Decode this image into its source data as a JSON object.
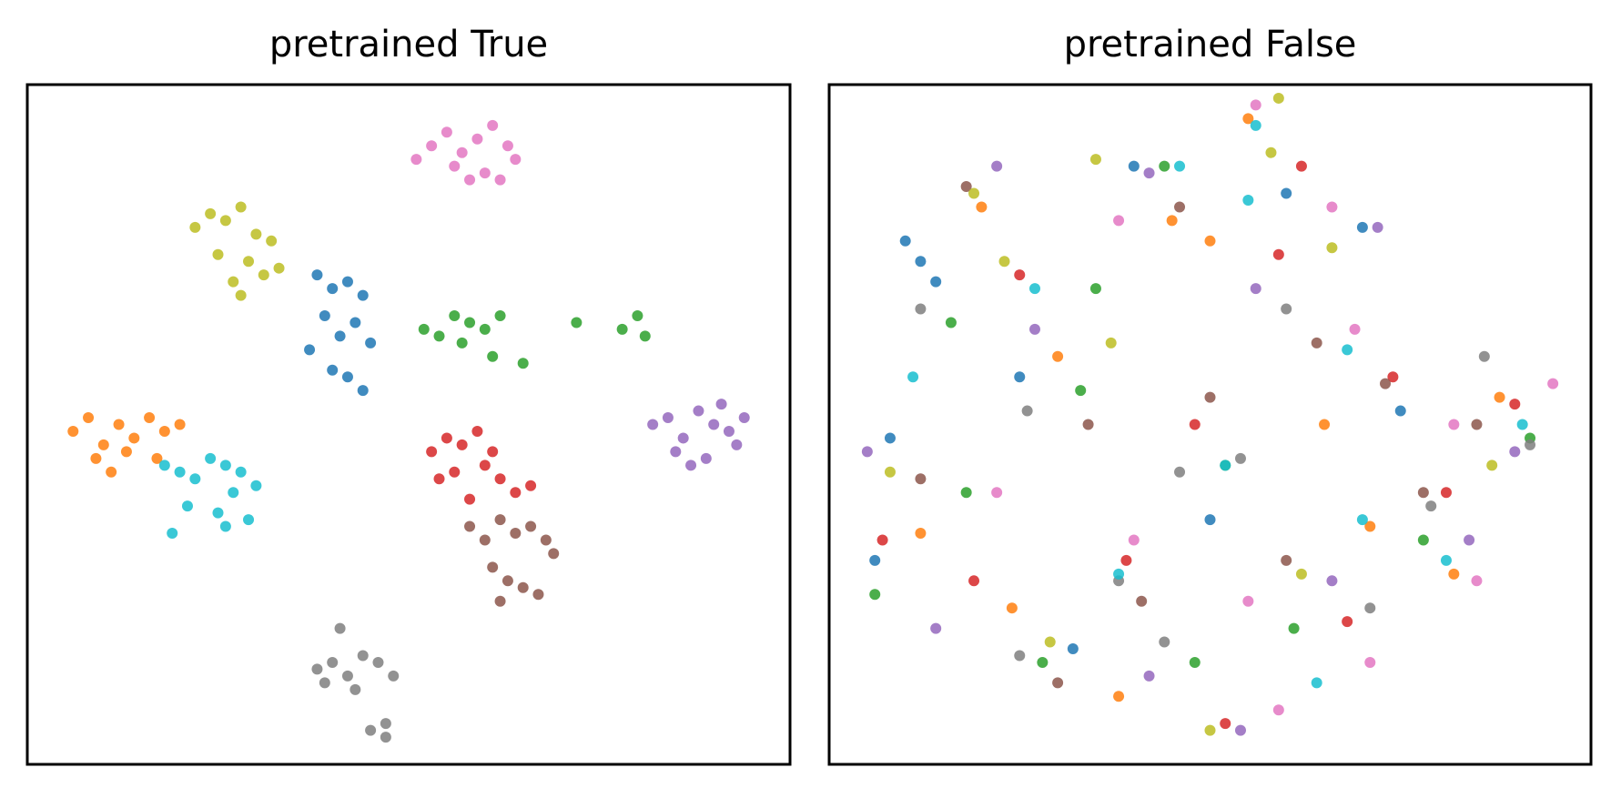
{
  "chart_data": [
    {
      "type": "scatter",
      "title": "pretrained True",
      "xlim": [
        0,
        100
      ],
      "ylim": [
        0,
        100
      ],
      "series": [
        {
          "color": "#1f77b4",
          "x": [
            38,
            40,
            42,
            44,
            39,
            43,
            41,
            37,
            45,
            40,
            42,
            44
          ],
          "values": [
            72,
            70,
            71,
            69,
            66,
            65,
            63,
            61,
            62,
            58,
            57,
            55
          ]
        },
        {
          "color": "#ff7f0e",
          "x": [
            6,
            8,
            10,
            12,
            14,
            16,
            18,
            20,
            9,
            13,
            17,
            11
          ],
          "values": [
            49,
            51,
            47,
            50,
            48,
            51,
            49,
            50,
            45,
            46,
            45,
            43
          ]
        },
        {
          "color": "#2ca02c",
          "x": [
            52,
            54,
            56,
            58,
            60,
            62,
            57,
            61,
            65,
            72,
            78,
            80,
            81
          ],
          "values": [
            64,
            63,
            66,
            65,
            64,
            66,
            62,
            60,
            59,
            65,
            64,
            66,
            63
          ]
        },
        {
          "color": "#d62728",
          "x": [
            53,
            55,
            57,
            59,
            61,
            56,
            60,
            62,
            64,
            54,
            58,
            66
          ],
          "values": [
            46,
            48,
            47,
            49,
            46,
            43,
            44,
            42,
            40,
            42,
            39,
            41
          ]
        },
        {
          "color": "#9467bd",
          "x": [
            82,
            84,
            86,
            88,
            90,
            92,
            94,
            85,
            89,
            93,
            87,
            91
          ],
          "values": [
            50,
            51,
            48,
            52,
            50,
            49,
            51,
            46,
            45,
            47,
            44,
            53
          ]
        },
        {
          "color": "#8c564b",
          "x": [
            58,
            60,
            62,
            64,
            66,
            68,
            61,
            63,
            65,
            67,
            62,
            69
          ],
          "values": [
            35,
            33,
            36,
            34,
            35,
            33,
            29,
            27,
            26,
            25,
            24,
            31
          ]
        },
        {
          "color": "#e377c2",
          "x": [
            53,
            55,
            57,
            59,
            61,
            63,
            56,
            60,
            64,
            58,
            62,
            51
          ],
          "values": [
            91,
            93,
            90,
            92,
            94,
            91,
            88,
            87,
            89,
            86,
            86,
            89
          ]
        },
        {
          "color": "#7f7f7f",
          "x": [
            38,
            40,
            42,
            44,
            46,
            48,
            39,
            43,
            47,
            45,
            47,
            41
          ],
          "values": [
            14,
            15,
            13,
            16,
            15,
            13,
            12,
            11,
            6,
            5,
            4,
            20
          ]
        },
        {
          "color": "#bcbd22",
          "x": [
            22,
            24,
            26,
            28,
            30,
            32,
            25,
            29,
            33,
            27,
            31,
            28
          ],
          "values": [
            79,
            81,
            80,
            82,
            78,
            77,
            75,
            74,
            73,
            71,
            72,
            69
          ]
        },
        {
          "color": "#17becf",
          "x": [
            18,
            20,
            22,
            24,
            26,
            28,
            30,
            21,
            25,
            29,
            27,
            19,
            26
          ],
          "values": [
            44,
            43,
            42,
            45,
            44,
            43,
            41,
            38,
            37,
            36,
            40,
            34,
            35
          ]
        }
      ]
    },
    {
      "type": "scatter",
      "title": "pretrained False",
      "xlim": [
        0,
        100
      ],
      "ylim": [
        0,
        100
      ],
      "series": [
        {
          "color": "#1f77b4",
          "x": [
            10,
            12,
            14,
            40,
            25,
            8,
            6,
            50,
            70,
            32,
            75,
            60
          ],
          "values": [
            77,
            74,
            71,
            88,
            57,
            48,
            30,
            36,
            79,
            17,
            52,
            84
          ]
        },
        {
          "color": "#ff7f0e",
          "x": [
            20,
            30,
            45,
            50,
            65,
            88,
            12,
            38,
            82,
            55,
            24,
            71
          ],
          "values": [
            82,
            60,
            80,
            77,
            50,
            54,
            34,
            10,
            28,
            95,
            23,
            35
          ]
        },
        {
          "color": "#2ca02c",
          "x": [
            16,
            33,
            18,
            52,
            78,
            92,
            6,
            28,
            48,
            44,
            61,
            35
          ],
          "values": [
            65,
            55,
            40,
            44,
            33,
            48,
            25,
            15,
            15,
            88,
            20,
            70
          ]
        },
        {
          "color": "#d62728",
          "x": [
            25,
            48,
            62,
            74,
            81,
            90,
            7,
            59,
            52,
            39,
            68,
            19
          ],
          "values": [
            72,
            50,
            88,
            57,
            40,
            53,
            33,
            75,
            6,
            30,
            21,
            27
          ]
        },
        {
          "color": "#9467bd",
          "x": [
            22,
            27,
            42,
            56,
            72,
            90,
            5,
            42,
            54,
            66,
            84,
            14
          ],
          "values": [
            88,
            64,
            87,
            70,
            79,
            46,
            46,
            13,
            5,
            27,
            33,
            20
          ]
        },
        {
          "color": "#8c564b",
          "x": [
            18,
            34,
            50,
            64,
            73,
            85,
            12,
            41,
            60,
            78,
            30,
            46
          ],
          "values": [
            85,
            50,
            54,
            62,
            56,
            50,
            42,
            24,
            30,
            40,
            12,
            82
          ]
        },
        {
          "color": "#e377c2",
          "x": [
            38,
            56,
            66,
            82,
            95,
            69,
            22,
            55,
            71,
            85,
            40,
            59
          ],
          "values": [
            80,
            97,
            82,
            50,
            56,
            64,
            40,
            24,
            15,
            27,
            33,
            8
          ]
        },
        {
          "color": "#7f7f7f",
          "x": [
            12,
            26,
            46,
            60,
            79,
            92,
            25,
            44,
            38,
            71,
            54,
            86
          ],
          "values": [
            67,
            52,
            43,
            67,
            38,
            47,
            16,
            18,
            27,
            23,
            45,
            60
          ]
        },
        {
          "color": "#bcbd22",
          "x": [
            19,
            23,
            35,
            59,
            66,
            58,
            8,
            29,
            50,
            62,
            87,
            37
          ],
          "values": [
            84,
            74,
            89,
            98,
            76,
            90,
            43,
            18,
            5,
            28,
            44,
            62
          ]
        },
        {
          "color": "#17becf",
          "x": [
            27,
            46,
            56,
            55,
            68,
            91,
            11,
            38,
            64,
            70,
            81,
            52
          ],
          "values": [
            70,
            88,
            94,
            83,
            61,
            50,
            57,
            28,
            12,
            36,
            30,
            44
          ]
        }
      ]
    }
  ]
}
